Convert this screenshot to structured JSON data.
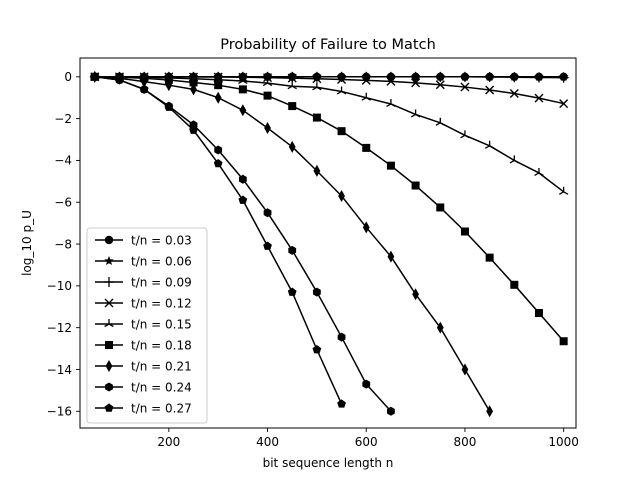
{
  "chart_data": {
    "type": "line",
    "title": "Probability of Failure to Match",
    "xlabel": "bit sequence length n",
    "ylabel": "log_10 p_U",
    "xlim": [
      20,
      1025
    ],
    "ylim": [
      -16.8,
      0.9
    ],
    "xticks": [
      200,
      400,
      600,
      800,
      1000
    ],
    "yticks": [
      0,
      -2,
      -4,
      -6,
      -8,
      -10,
      -12,
      -14,
      -16
    ],
    "grid": false,
    "legend_position": "lower-left",
    "color": "#000000",
    "series": [
      {
        "name": "t/n = 0.03",
        "marker": "circle",
        "x": [
          50,
          100,
          150,
          200,
          250,
          300,
          350,
          400,
          450,
          500,
          550,
          600,
          650,
          700,
          750,
          800,
          850,
          900,
          950,
          1000
        ],
        "y": [
          0,
          0,
          0,
          0,
          0,
          0,
          0,
          0,
          0,
          0,
          0,
          0,
          0,
          0,
          0,
          0,
          0,
          0,
          0,
          0
        ]
      },
      {
        "name": "t/n = 0.06",
        "marker": "star",
        "x": [
          50,
          100,
          150,
          200,
          250,
          300,
          350,
          400,
          450,
          500,
          550,
          600,
          650,
          700,
          750,
          800,
          850,
          900,
          950,
          1000
        ],
        "y": [
          0,
          0,
          0,
          0,
          0,
          0,
          0,
          0,
          0,
          0,
          0,
          0,
          0,
          0,
          0,
          0,
          0,
          0,
          0,
          0
        ]
      },
      {
        "name": "t/n = 0.09",
        "marker": "plus",
        "x": [
          50,
          100,
          150,
          200,
          250,
          300,
          350,
          400,
          450,
          500,
          550,
          600,
          650,
          700,
          750,
          800,
          850,
          900,
          950,
          1000
        ],
        "y": [
          0,
          0,
          0,
          0,
          0,
          0,
          0,
          0,
          0,
          0,
          0,
          0,
          0,
          0,
          0,
          0,
          -0.01,
          -0.02,
          -0.03,
          -0.04
        ]
      },
      {
        "name": "t/n = 0.12",
        "marker": "x",
        "x": [
          50,
          100,
          150,
          200,
          250,
          300,
          350,
          400,
          450,
          500,
          550,
          600,
          650,
          700,
          750,
          800,
          850,
          900,
          950,
          1000
        ],
        "y": [
          0,
          0,
          0,
          0,
          -0.01,
          -0.01,
          -0.02,
          -0.04,
          -0.06,
          -0.09,
          -0.13,
          -0.17,
          -0.22,
          -0.29,
          -0.38,
          -0.49,
          -0.63,
          -0.8,
          -1.02,
          -1.28
        ]
      },
      {
        "name": "t/n = 0.15",
        "marker": "tri",
        "x": [
          50,
          100,
          150,
          200,
          250,
          300,
          350,
          400,
          450,
          500,
          550,
          600,
          650,
          700,
          750,
          800,
          850,
          900,
          950,
          1000
        ],
        "y": [
          0,
          -0.01,
          -0.02,
          -0.05,
          -0.09,
          -0.14,
          -0.2,
          -0.3,
          -0.45,
          -0.5,
          -0.7,
          -1.0,
          -1.3,
          -1.8,
          -2.2,
          -2.8,
          -3.3,
          -4.0,
          -4.6,
          -5.5
        ]
      },
      {
        "name": "t/n = 0.18",
        "marker": "square",
        "x": [
          50,
          100,
          150,
          200,
          250,
          300,
          350,
          400,
          450,
          500,
          550,
          600,
          650,
          700,
          750,
          800,
          850,
          900,
          950,
          1000
        ],
        "y": [
          0,
          -0.02,
          -0.07,
          -0.15,
          -0.27,
          -0.4,
          -0.6,
          -0.9,
          -1.4,
          -1.95,
          -2.6,
          -3.4,
          -4.25,
          -5.2,
          -6.25,
          -7.4,
          -8.65,
          -9.95,
          -11.3,
          -12.65
        ]
      },
      {
        "name": "t/n = 0.21",
        "marker": "thin_diamond",
        "x": [
          50,
          100,
          150,
          200,
          250,
          300,
          350,
          400,
          450,
          500,
          550,
          600,
          650,
          700,
          750,
          800,
          850
        ],
        "y": [
          0,
          -0.07,
          -0.23,
          -0.4,
          -0.6,
          -1.0,
          -1.6,
          -2.45,
          -3.35,
          -4.5,
          -5.7,
          -7.2,
          -8.6,
          -10.4,
          -12.0,
          -14.0,
          -16.0
        ]
      },
      {
        "name": "t/n = 0.24",
        "marker": "hexagon",
        "x": [
          50,
          100,
          150,
          200,
          250,
          300,
          350,
          400,
          450,
          500,
          550,
          600,
          650
        ],
        "y": [
          0,
          -0.15,
          -0.6,
          -1.4,
          -2.3,
          -3.5,
          -4.9,
          -6.5,
          -8.3,
          -10.3,
          -12.45,
          -14.7,
          -16.0
        ]
      },
      {
        "name": "t/n = 0.27",
        "marker": "pentagon",
        "x": [
          50,
          100,
          150,
          200,
          250,
          300,
          350,
          400,
          450,
          500,
          550
        ],
        "y": [
          0,
          -0.15,
          -0.6,
          -1.45,
          -2.55,
          -4.15,
          -5.9,
          -8.1,
          -10.3,
          -13.05,
          -15.65
        ]
      }
    ]
  }
}
